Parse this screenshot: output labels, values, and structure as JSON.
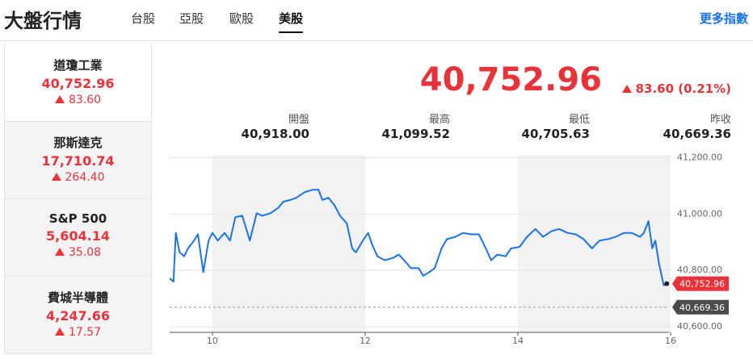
{
  "header": {
    "title": "大盤行情",
    "tabs": [
      "台股",
      "亞股",
      "歐股",
      "美股"
    ],
    "active_tab": 3,
    "more_link": "更多指數"
  },
  "indices": [
    {
      "name": "道瓊工業",
      "value": "40,752.96",
      "change": "83.60"
    },
    {
      "name": "那斯達克",
      "value": "17,710.74",
      "change": "264.40"
    },
    {
      "name": "S&P 500",
      "value": "5,604.14",
      "change": "35.08"
    },
    {
      "name": "費城半導體",
      "value": "4,247.66",
      "change": "17.57"
    }
  ],
  "selected_index": 0,
  "quote": {
    "value": "40,752.96",
    "change": "83.60 (0.21%)"
  },
  "stats": [
    {
      "label": "開盤",
      "value": "40,918.00"
    },
    {
      "label": "最高",
      "value": "41,099.52"
    },
    {
      "label": "最低",
      "value": "40,705.63"
    },
    {
      "label": "昨收",
      "value": "40,669.36"
    }
  ],
  "chart_data": {
    "type": "line",
    "color": "#1a73e8",
    "x": [
      9.44,
      9.49,
      9.52,
      9.57,
      9.63,
      9.68,
      9.76,
      9.81,
      9.88,
      9.95,
      10.0,
      10.07,
      10.16,
      10.23,
      10.3,
      10.39,
      10.49,
      10.58,
      10.65,
      10.76,
      10.86,
      10.93,
      11.02,
      11.1,
      11.21,
      11.31,
      11.39,
      11.44,
      11.52,
      11.6,
      11.67,
      11.76,
      11.83,
      11.88,
      11.97,
      12.04,
      12.09,
      12.16,
      12.26,
      12.37,
      12.44,
      12.51,
      12.6,
      12.7,
      12.76,
      12.84,
      12.91,
      13.0,
      13.07,
      13.18,
      13.28,
      13.39,
      13.49,
      13.58,
      13.65,
      13.73,
      13.84,
      13.91,
      14.02,
      14.12,
      14.23,
      14.33,
      14.44,
      14.54,
      14.65,
      14.76,
      14.86,
      14.97,
      15.07,
      15.18,
      15.28,
      15.39,
      15.49,
      15.6,
      15.65,
      15.71,
      15.76,
      15.8,
      15.85,
      15.91,
      15.95
    ],
    "values": [
      40772,
      40760,
      40933,
      40864,
      40850,
      40878,
      40906,
      40928,
      40794,
      40906,
      40933,
      40906,
      40933,
      40906,
      40989,
      40994,
      40906,
      41003,
      40994,
      41003,
      41022,
      41044,
      41050,
      41058,
      41078,
      41086,
      41086,
      41050,
      41058,
      41031,
      40994,
      40967,
      40878,
      40864,
      40906,
      40933,
      40892,
      40850,
      40836,
      40845,
      40856,
      40836,
      40808,
      40808,
      40781,
      40794,
      40808,
      40878,
      40911,
      40919,
      40933,
      40928,
      40928,
      40878,
      40836,
      40856,
      40850,
      40878,
      40883,
      40919,
      40947,
      40919,
      40939,
      40947,
      40933,
      40928,
      40911,
      40878,
      40906,
      40911,
      40919,
      40933,
      40933,
      40919,
      40933,
      40975,
      40878,
      40906,
      40822,
      40747,
      40752.96
    ],
    "xlim": [
      9.44,
      16
    ],
    "ylim": [
      40580,
      41210
    ],
    "xticks": [
      10,
      12,
      14,
      16
    ],
    "yticks": [
      {
        "value": 40600,
        "label": "40,600.00"
      },
      {
        "value": 40800,
        "label": "40,800.00"
      },
      {
        "value": 41000,
        "label": "41,000.00"
      },
      {
        "value": 41200,
        "label": "41,200.00"
      }
    ],
    "markers": [
      {
        "value": 40752.96,
        "label": "40,752.96",
        "color": "#e8333b"
      },
      {
        "value": 40669.36,
        "label": "40,669.36",
        "color": "#4a4a4a"
      }
    ]
  }
}
